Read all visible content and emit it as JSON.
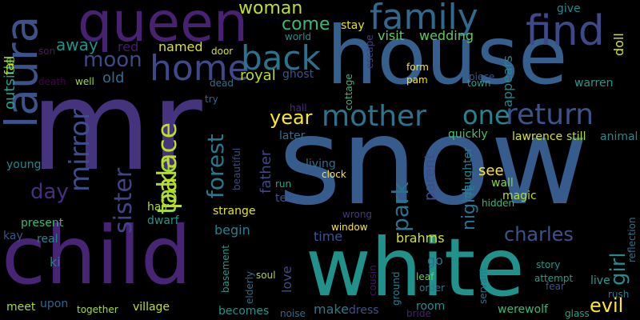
{
  "canvas": {
    "background": "#000000"
  },
  "words": [
    {
      "text": "mr",
      "color": "#46337e",
      "rotated": false
    },
    {
      "text": "snow",
      "color": "#365c8d",
      "rotated": false
    },
    {
      "text": "house",
      "color": "#355f8d",
      "rotated": false
    },
    {
      "text": "child",
      "color": "#482475",
      "rotated": false
    },
    {
      "text": "white",
      "color": "#21918c",
      "rotated": false
    },
    {
      "text": "queen",
      "color": "#482173",
      "rotated": false
    },
    {
      "text": "laura",
      "color": "#3b528b",
      "rotated": true
    },
    {
      "text": "family",
      "color": "#31688e",
      "rotated": false
    },
    {
      "text": "find",
      "color": "#3e4989",
      "rotated": false
    },
    {
      "text": "home",
      "color": "#3e4989",
      "rotated": false
    },
    {
      "text": "back",
      "color": "#2c728e",
      "rotated": false
    },
    {
      "text": "return",
      "color": "#3b528b",
      "rotated": false
    },
    {
      "text": "mother",
      "color": "#2c738e",
      "rotated": false
    },
    {
      "text": "one",
      "color": "#25858e",
      "rotated": false
    },
    {
      "text": "mirror",
      "color": "#3e4c8a",
      "rotated": true
    },
    {
      "text": "take",
      "color": "#a0da39",
      "rotated": true
    },
    {
      "text": "palace",
      "color": "#bddf26",
      "rotated": true
    },
    {
      "text": "sister",
      "color": "#414487",
      "rotated": true
    },
    {
      "text": "forest",
      "color": "#2a788e",
      "rotated": true
    },
    {
      "text": "park",
      "color": "#2c728e",
      "rotated": true
    },
    {
      "text": "moon",
      "color": "#3f4889",
      "rotated": false
    },
    {
      "text": "woman",
      "color": "#c2df23",
      "rotated": false
    },
    {
      "text": "come",
      "color": "#38b977",
      "rotated": false
    },
    {
      "text": "away",
      "color": "#20928c",
      "rotated": false
    },
    {
      "text": "day",
      "color": "#46307e",
      "rotated": false
    },
    {
      "text": "girl",
      "color": "#238a8d",
      "rotated": true
    },
    {
      "text": "evil",
      "color": "#fde725",
      "rotated": false
    },
    {
      "text": "charles",
      "color": "#3b528b",
      "rotated": false
    },
    {
      "text": "night",
      "color": "#2c728e",
      "rotated": true
    },
    {
      "text": "year",
      "color": "#fde725",
      "rotated": false
    },
    {
      "text": "father",
      "color": "#3f4788",
      "rotated": true
    },
    {
      "text": "parent",
      "color": "#3e4a89",
      "rotated": true
    },
    {
      "text": "visit",
      "color": "#65cb5e",
      "rotated": false
    },
    {
      "text": "wedding",
      "color": "#5ec962",
      "rotated": false
    },
    {
      "text": "stay",
      "color": "#e5e419",
      "rotated": false
    },
    {
      "text": "red",
      "color": "#481a6c",
      "rotated": false
    },
    {
      "text": "named",
      "color": "#d8e219",
      "rotated": false
    },
    {
      "text": "old",
      "color": "#2e6f8e",
      "rotated": false
    },
    {
      "text": "royal",
      "color": "#bade28",
      "rotated": false
    },
    {
      "text": "ghost",
      "color": "#3a538b",
      "rotated": false
    },
    {
      "text": "outside",
      "color": "#1fa188",
      "rotated": true
    },
    {
      "text": "fall",
      "color": "#cae11f",
      "rotated": true
    },
    {
      "text": "appears",
      "color": "#24868e",
      "rotated": true
    },
    {
      "text": "doll",
      "color": "#d5e21a",
      "rotated": true
    },
    {
      "text": "give",
      "color": "#228b8d",
      "rotated": false
    },
    {
      "text": "warren",
      "color": "#1e9c89",
      "rotated": false
    },
    {
      "text": "see",
      "color": "#fde725",
      "rotated": false
    },
    {
      "text": "daughter",
      "color": "#26818e",
      "rotated": true
    },
    {
      "text": "quickly",
      "color": "#4ac16d",
      "rotated": false
    },
    {
      "text": "lawrence",
      "color": "#d5e21a",
      "rotated": false
    },
    {
      "text": "still",
      "color": "#b5de2b",
      "rotated": false
    },
    {
      "text": "animal",
      "color": "#238a8d",
      "rotated": false
    },
    {
      "text": "young",
      "color": "#23898e",
      "rotated": false
    },
    {
      "text": "later",
      "color": "#2e6e8e",
      "rotated": false
    },
    {
      "text": "tell",
      "color": "#3b528b",
      "rotated": false
    },
    {
      "text": "living",
      "color": "#2e6e8e",
      "rotated": false
    },
    {
      "text": "wall",
      "color": "#84d44b",
      "rotated": false
    },
    {
      "text": "magic",
      "color": "#b2dd2d",
      "rotated": false
    },
    {
      "text": "hidden",
      "color": "#35b779",
      "rotated": false
    },
    {
      "text": "begin",
      "color": "#277f8e",
      "rotated": false
    },
    {
      "text": "time",
      "color": "#3a538b",
      "rotated": false
    },
    {
      "text": "brahms",
      "color": "#d5e21a",
      "rotated": false
    },
    {
      "text": "strange",
      "color": "#e2e418",
      "rotated": false
    },
    {
      "text": "hair",
      "color": "#a8db34",
      "rotated": false
    },
    {
      "text": "dwarf",
      "color": "#1f958b",
      "rotated": false
    },
    {
      "text": "present",
      "color": "#38b977",
      "rotated": false
    },
    {
      "text": "kay",
      "color": "#3b528b",
      "rotated": false
    },
    {
      "text": "real",
      "color": "#26828e",
      "rotated": false
    },
    {
      "text": "ki",
      "color": "#277f8e",
      "rotated": false
    },
    {
      "text": "love",
      "color": "#3f4889",
      "rotated": true
    },
    {
      "text": "go",
      "color": "#31678e",
      "rotated": false
    },
    {
      "text": "story",
      "color": "#20938c",
      "rotated": false
    },
    {
      "text": "live",
      "color": "#1f9e89",
      "rotated": false
    },
    {
      "text": "reflection",
      "color": "#2c728e",
      "rotated": true
    },
    {
      "text": "upon",
      "color": "#32658e",
      "rotated": false
    },
    {
      "text": "meet",
      "color": "#a2da37",
      "rotated": false
    },
    {
      "text": "together",
      "color": "#a5db36",
      "rotated": false
    },
    {
      "text": "village",
      "color": "#c0df25",
      "rotated": false
    },
    {
      "text": "becomes",
      "color": "#1f958b",
      "rotated": false
    },
    {
      "text": "make",
      "color": "#29798e",
      "rotated": false
    },
    {
      "text": "dress",
      "color": "#3b528b",
      "rotated": false
    },
    {
      "text": "room",
      "color": "#20928c",
      "rotated": false
    },
    {
      "text": "werewolf",
      "color": "#37b878",
      "rotated": false
    },
    {
      "text": "elderly",
      "color": "#2e6e8e",
      "rotated": true
    },
    {
      "text": "ground",
      "color": "#27808e",
      "rotated": true
    },
    {
      "text": "servant",
      "color": "#2a768e",
      "rotated": true
    },
    {
      "text": "leaf",
      "color": "#6ccd5a",
      "rotated": false
    },
    {
      "text": "cottage",
      "color": "#35b779",
      "rotated": true
    },
    {
      "text": "beautiful",
      "color": "#3e4a89",
      "rotated": true
    },
    {
      "text": "try",
      "color": "#32658e",
      "rotated": false
    },
    {
      "text": "dead",
      "color": "#2d718e",
      "rotated": false
    },
    {
      "text": "door",
      "color": "#d0e11c",
      "rotated": false
    },
    {
      "text": "well",
      "color": "#a0da39",
      "rotated": false
    },
    {
      "text": "death",
      "color": "#440154",
      "rotated": false
    },
    {
      "text": "son",
      "color": "#48186a",
      "rotated": false
    },
    {
      "text": "form",
      "color": "#fde725",
      "rotated": false
    },
    {
      "text": "pam",
      "color": "#fde725",
      "rotated": false
    },
    {
      "text": "world",
      "color": "#20928c",
      "rotated": false
    },
    {
      "text": "run",
      "color": "#20a486",
      "rotated": false
    },
    {
      "text": "hall",
      "color": "#472c7a",
      "rotated": false
    },
    {
      "text": "basement",
      "color": "#1e9b8a",
      "rotated": true
    },
    {
      "text": "cousin",
      "color": "#471063",
      "rotated": true
    },
    {
      "text": "noise",
      "color": "#2e6e8e",
      "rotated": false
    },
    {
      "text": "order",
      "color": "#29788e",
      "rotated": false
    },
    {
      "text": "bride",
      "color": "#482071",
      "rotated": false
    },
    {
      "text": "escape",
      "color": "#433e85",
      "rotated": true
    },
    {
      "text": "piece",
      "color": "#3a538b",
      "rotated": false
    },
    {
      "text": "town",
      "color": "#1f9e89",
      "rotated": false
    },
    {
      "text": "window",
      "color": "#fde725",
      "rotated": false
    },
    {
      "text": "wrong",
      "color": "#453581",
      "rotated": false
    },
    {
      "text": "clock",
      "color": "#fde725",
      "rotated": false
    },
    {
      "text": "fear",
      "color": "#3b528b",
      "rotated": false
    },
    {
      "text": "attempt",
      "color": "#1fa088",
      "rotated": false
    },
    {
      "text": "glass",
      "color": "#20a386",
      "rotated": false
    },
    {
      "text": "soul",
      "color": "#a8db34",
      "rotated": false
    },
    {
      "text": "rush",
      "color": "#29788e",
      "rotated": false
    }
  ]
}
